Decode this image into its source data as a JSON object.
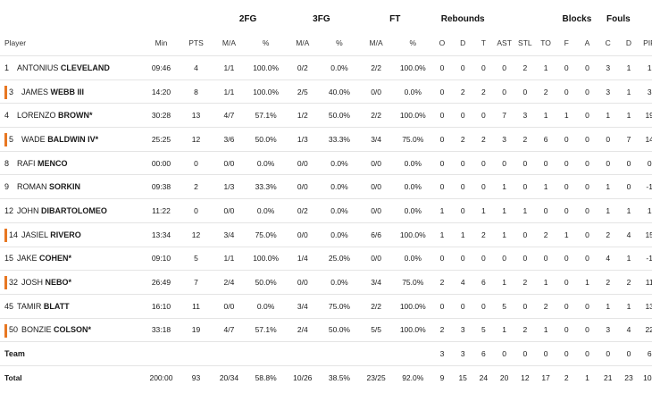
{
  "headers": {
    "groups": {
      "fg2": "2FG",
      "fg3": "3FG",
      "ft": "FT",
      "reb": "Rebounds",
      "blk": "Blocks",
      "fouls": "Fouls"
    },
    "cols": {
      "player": "Player",
      "min": "Min",
      "pts": "PTS",
      "fg2_ma": "M/A",
      "fg2_pct": "%",
      "fg3_ma": "M/A",
      "fg3_pct": "%",
      "ft_ma": "M/A",
      "ft_pct": "%",
      "o": "O",
      "d": "D",
      "t": "T",
      "ast": "AST",
      "stl": "STL",
      "to": "TO",
      "f": "F",
      "a": "A",
      "c": "C",
      "fd": "D",
      "pir": "PIR",
      "pm": "+/"
    }
  },
  "rows": [
    {
      "num": "1",
      "first": "ANTONIUS",
      "last": "CLEVELAND",
      "starter": false,
      "min": "09:46",
      "pts": "4",
      "fg2_ma": "1/1",
      "fg2_pct": "100.0%",
      "fg3_ma": "0/2",
      "fg3_pct": "0.0%",
      "ft_ma": "2/2",
      "ft_pct": "100.0%",
      "o": "0",
      "d": "0",
      "t": "0",
      "ast": "0",
      "stl": "2",
      "to": "1",
      "f": "0",
      "a": "0",
      "c": "3",
      "fd": "1",
      "pir": "1"
    },
    {
      "num": "3",
      "first": "JAMES",
      "last": "WEBB III",
      "starter": true,
      "min": "14:20",
      "pts": "8",
      "fg2_ma": "1/1",
      "fg2_pct": "100.0%",
      "fg3_ma": "2/5",
      "fg3_pct": "40.0%",
      "ft_ma": "0/0",
      "ft_pct": "0.0%",
      "o": "0",
      "d": "2",
      "t": "2",
      "ast": "0",
      "stl": "0",
      "to": "2",
      "f": "0",
      "a": "0",
      "c": "3",
      "fd": "1",
      "pir": "3"
    },
    {
      "num": "4",
      "first": "LORENZO",
      "last": "BROWN*",
      "starter": false,
      "min": "30:28",
      "pts": "13",
      "fg2_ma": "4/7",
      "fg2_pct": "57.1%",
      "fg3_ma": "1/2",
      "fg3_pct": "50.0%",
      "ft_ma": "2/2",
      "ft_pct": "100.0%",
      "o": "0",
      "d": "0",
      "t": "0",
      "ast": "7",
      "stl": "3",
      "to": "1",
      "f": "1",
      "a": "0",
      "c": "1",
      "fd": "1",
      "pir": "19"
    },
    {
      "num": "5",
      "first": "WADE",
      "last": "BALDWIN IV*",
      "starter": true,
      "min": "25:25",
      "pts": "12",
      "fg2_ma": "3/6",
      "fg2_pct": "50.0%",
      "fg3_ma": "1/3",
      "fg3_pct": "33.3%",
      "ft_ma": "3/4",
      "ft_pct": "75.0%",
      "o": "0",
      "d": "2",
      "t": "2",
      "ast": "3",
      "stl": "2",
      "to": "6",
      "f": "0",
      "a": "0",
      "c": "0",
      "fd": "7",
      "pir": "14"
    },
    {
      "num": "8",
      "first": "RAFI",
      "last": "MENCO",
      "starter": false,
      "min": "00:00",
      "pts": "0",
      "fg2_ma": "0/0",
      "fg2_pct": "0.0%",
      "fg3_ma": "0/0",
      "fg3_pct": "0.0%",
      "ft_ma": "0/0",
      "ft_pct": "0.0%",
      "o": "0",
      "d": "0",
      "t": "0",
      "ast": "0",
      "stl": "0",
      "to": "0",
      "f": "0",
      "a": "0",
      "c": "0",
      "fd": "0",
      "pir": "0"
    },
    {
      "num": "9",
      "first": "ROMAN",
      "last": "SORKIN",
      "starter": false,
      "min": "09:38",
      "pts": "2",
      "fg2_ma": "1/3",
      "fg2_pct": "33.3%",
      "fg3_ma": "0/0",
      "fg3_pct": "0.0%",
      "ft_ma": "0/0",
      "ft_pct": "0.0%",
      "o": "0",
      "d": "0",
      "t": "0",
      "ast": "1",
      "stl": "0",
      "to": "1",
      "f": "0",
      "a": "0",
      "c": "1",
      "fd": "0",
      "pir": "-1"
    },
    {
      "num": "12",
      "first": "JOHN",
      "last": "DIBARTOLOMEO",
      "starter": false,
      "min": "11:22",
      "pts": "0",
      "fg2_ma": "0/0",
      "fg2_pct": "0.0%",
      "fg3_ma": "0/2",
      "fg3_pct": "0.0%",
      "ft_ma": "0/0",
      "ft_pct": "0.0%",
      "o": "1",
      "d": "0",
      "t": "1",
      "ast": "1",
      "stl": "1",
      "to": "0",
      "f": "0",
      "a": "0",
      "c": "1",
      "fd": "1",
      "pir": "1"
    },
    {
      "num": "14",
      "first": "JASIEL",
      "last": "RIVERO",
      "starter": true,
      "min": "13:34",
      "pts": "12",
      "fg2_ma": "3/4",
      "fg2_pct": "75.0%",
      "fg3_ma": "0/0",
      "fg3_pct": "0.0%",
      "ft_ma": "6/6",
      "ft_pct": "100.0%",
      "o": "1",
      "d": "1",
      "t": "2",
      "ast": "1",
      "stl": "0",
      "to": "2",
      "f": "1",
      "a": "0",
      "c": "2",
      "fd": "4",
      "pir": "15"
    },
    {
      "num": "15",
      "first": "JAKE",
      "last": "COHEN*",
      "starter": false,
      "min": "09:10",
      "pts": "5",
      "fg2_ma": "1/1",
      "fg2_pct": "100.0%",
      "fg3_ma": "1/4",
      "fg3_pct": "25.0%",
      "ft_ma": "0/0",
      "ft_pct": "0.0%",
      "o": "0",
      "d": "0",
      "t": "0",
      "ast": "0",
      "stl": "0",
      "to": "0",
      "f": "0",
      "a": "0",
      "c": "4",
      "fd": "1",
      "pir": "-1"
    },
    {
      "num": "32",
      "first": "JOSH",
      "last": "NEBO*",
      "starter": true,
      "min": "26:49",
      "pts": "7",
      "fg2_ma": "2/4",
      "fg2_pct": "50.0%",
      "fg3_ma": "0/0",
      "fg3_pct": "0.0%",
      "ft_ma": "3/4",
      "ft_pct": "75.0%",
      "o": "2",
      "d": "4",
      "t": "6",
      "ast": "1",
      "stl": "2",
      "to": "1",
      "f": "0",
      "a": "1",
      "c": "2",
      "fd": "2",
      "pir": "11"
    },
    {
      "num": "45",
      "first": "TAMIR",
      "last": "BLATT",
      "starter": false,
      "min": "16:10",
      "pts": "11",
      "fg2_ma": "0/0",
      "fg2_pct": "0.0%",
      "fg3_ma": "3/4",
      "fg3_pct": "75.0%",
      "ft_ma": "2/2",
      "ft_pct": "100.0%",
      "o": "0",
      "d": "0",
      "t": "0",
      "ast": "5",
      "stl": "0",
      "to": "2",
      "f": "0",
      "a": "0",
      "c": "1",
      "fd": "1",
      "pir": "13"
    },
    {
      "num": "50",
      "first": "BONZIE",
      "last": "COLSON*",
      "starter": true,
      "min": "33:18",
      "pts": "19",
      "fg2_ma": "4/7",
      "fg2_pct": "57.1%",
      "fg3_ma": "2/4",
      "fg3_pct": "50.0%",
      "ft_ma": "5/5",
      "ft_pct": "100.0%",
      "o": "2",
      "d": "3",
      "t": "5",
      "ast": "1",
      "stl": "2",
      "to": "1",
      "f": "0",
      "a": "0",
      "c": "3",
      "fd": "4",
      "pir": "22"
    }
  ],
  "team": {
    "label": "Team",
    "o": "3",
    "d": "3",
    "t": "6",
    "ast": "0",
    "stl": "0",
    "to": "0",
    "f": "0",
    "a": "0",
    "c": "0",
    "fd": "0",
    "pir": "6"
  },
  "total": {
    "label": "Total",
    "min": "200:00",
    "pts": "93",
    "fg2_ma": "20/34",
    "fg2_pct": "58.8%",
    "fg3_ma": "10/26",
    "fg3_pct": "38.5%",
    "ft_ma": "23/25",
    "ft_pct": "92.0%",
    "o": "9",
    "d": "15",
    "t": "24",
    "ast": "20",
    "stl": "12",
    "to": "17",
    "f": "2",
    "a": "1",
    "c": "21",
    "fd": "23",
    "pir": "103"
  },
  "colors": {
    "starter_mark": "#e87722",
    "row_border": "#e4e4e4"
  }
}
